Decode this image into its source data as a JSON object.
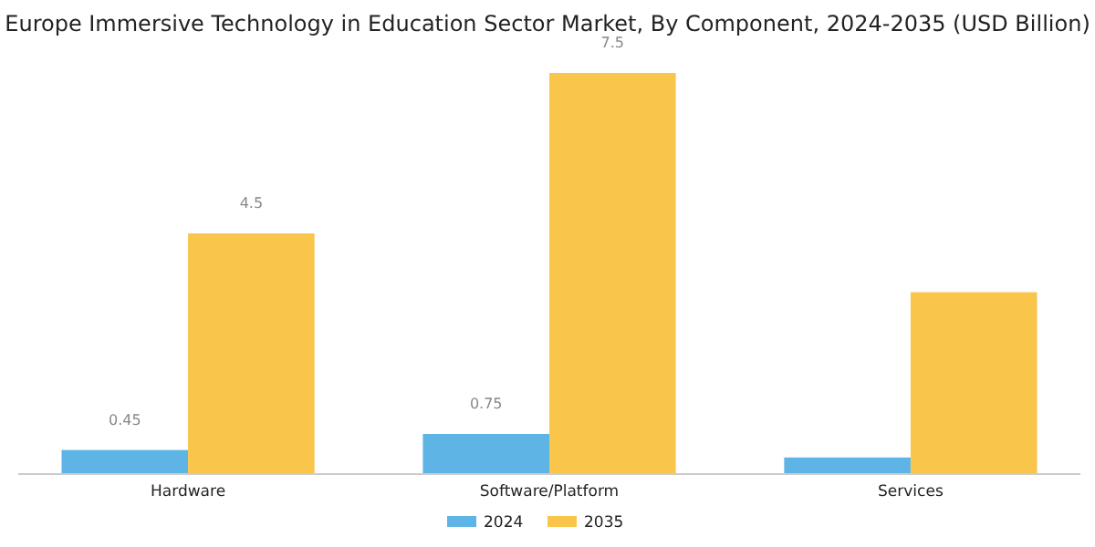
{
  "chart_data": {
    "type": "bar",
    "title": "Europe Immersive Technology in Education Sector Market, By Component, 2024-2035 (USD Billion)",
    "categories": [
      "Hardware",
      "Software/Platform",
      "Services"
    ],
    "ylim": [
      0,
      7.5
    ],
    "legend": "bottom",
    "series": [
      {
        "name": "2024",
        "color": "#5db4e5",
        "values": [
          0.45,
          0.75,
          0.31
        ],
        "value_labels": [
          "0.45",
          "0.75",
          null
        ]
      },
      {
        "name": "2035",
        "color": "#f9c54b",
        "values": [
          4.5,
          7.5,
          3.4
        ],
        "value_labels": [
          "4.5",
          "7.5",
          null
        ]
      }
    ]
  }
}
